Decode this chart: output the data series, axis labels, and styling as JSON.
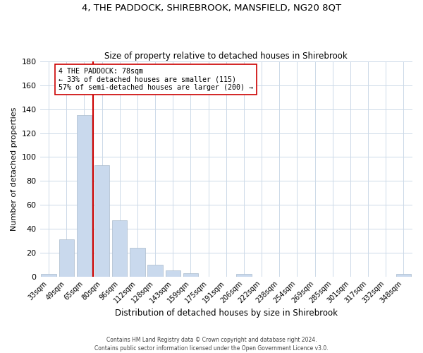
{
  "title": "4, THE PADDOCK, SHIREBROOK, MANSFIELD, NG20 8QT",
  "subtitle": "Size of property relative to detached houses in Shirebrook",
  "xlabel": "Distribution of detached houses by size in Shirebrook",
  "ylabel": "Number of detached properties",
  "bar_labels": [
    "33sqm",
    "49sqm",
    "65sqm",
    "80sqm",
    "96sqm",
    "112sqm",
    "128sqm",
    "143sqm",
    "159sqm",
    "175sqm",
    "191sqm",
    "206sqm",
    "222sqm",
    "238sqm",
    "254sqm",
    "269sqm",
    "285sqm",
    "301sqm",
    "317sqm",
    "332sqm",
    "348sqm"
  ],
  "bar_heights": [
    2,
    31,
    135,
    93,
    47,
    24,
    10,
    5,
    3,
    0,
    0,
    2,
    0,
    0,
    0,
    0,
    0,
    0,
    0,
    0,
    2
  ],
  "bar_color": "#c9d9ed",
  "bar_edge_color": "#aabbcc",
  "vline_color": "#cc0000",
  "annotation_text": "4 THE PADDOCK: 78sqm\n← 33% of detached houses are smaller (115)\n57% of semi-detached houses are larger (200) →",
  "annotation_box_color": "#ffffff",
  "annotation_box_edge": "#cc0000",
  "ylim": [
    0,
    180
  ],
  "yticks": [
    0,
    20,
    40,
    60,
    80,
    100,
    120,
    140,
    160,
    180
  ],
  "grid_color": "#ccd9e8",
  "footer_line1": "Contains HM Land Registry data © Crown copyright and database right 2024.",
  "footer_line2": "Contains public sector information licensed under the Open Government Licence v3.0.",
  "title_fontsize": 9.5,
  "subtitle_fontsize": 8.5,
  "bar_width": 0.85
}
